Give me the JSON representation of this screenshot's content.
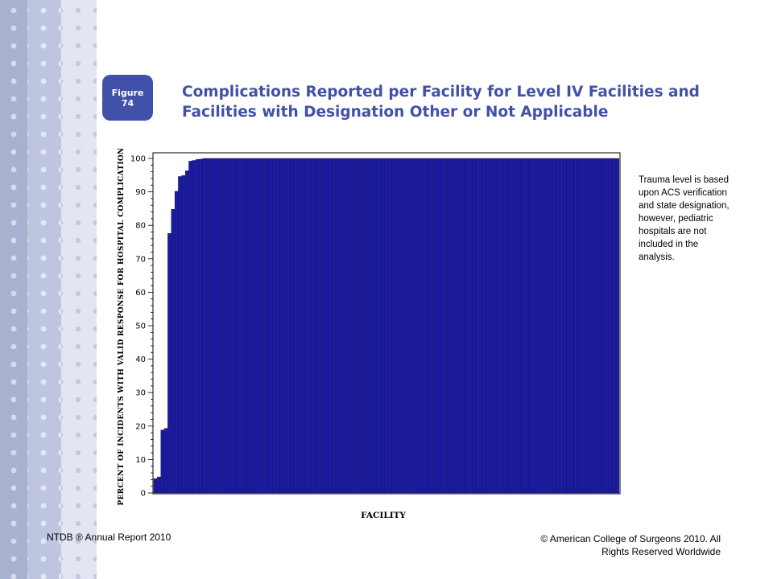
{
  "badge": {
    "line1": "Figure",
    "line2": "74"
  },
  "title": {
    "line1": "Complications Reported per Facility for Level IV Facilities and",
    "line2": "Facilities with Designation Other or Not Applicable"
  },
  "note": "Trauma level is based upon ACS verification and state designation, however, pediatric hospitals are not included in the analysis.",
  "footer": {
    "left": "NTDB ® Annual Report 2010",
    "right_line1": "© American College of Surgeons 2010.  All",
    "right_line2": "Rights Reserved Worldwide"
  },
  "colors": {
    "bar_fill": "#1a1aa6",
    "bar_edge": "#000033",
    "title": "#4150a8",
    "badge": "#4150a8"
  },
  "chart_data": {
    "type": "bar",
    "title": "",
    "xlabel": "FACILITY",
    "ylabel": "PERCENT OF INCIDENTS WITH VALID RESPONSE FOR HOSPITAL COMPLICATION",
    "ylim": [
      0,
      100
    ],
    "yticks": [
      0,
      10,
      20,
      30,
      40,
      50,
      60,
      70,
      80,
      90,
      100
    ],
    "grid": false,
    "values": [
      4.3,
      4.8,
      18.8,
      19.3,
      77.6,
      84.8,
      90.2,
      94.6,
      94.9,
      96.3,
      99.2,
      99.4,
      99.7,
      99.8,
      100,
      100,
      100,
      100,
      100,
      100,
      100,
      100,
      100,
      100,
      100,
      100,
      100,
      100,
      100,
      100,
      100,
      100,
      100,
      100,
      100,
      100,
      100,
      100,
      100,
      100,
      100,
      100,
      100,
      100,
      100,
      100,
      100,
      100,
      100,
      100,
      100,
      100,
      100,
      100,
      100,
      100,
      100,
      100,
      100,
      100,
      100,
      100,
      100,
      100,
      100,
      100,
      100,
      100,
      100,
      100,
      100,
      100,
      100,
      100,
      100,
      100,
      100,
      100,
      100,
      100,
      100,
      100,
      100,
      100,
      100,
      100,
      100,
      100,
      100,
      100,
      100,
      100,
      100,
      100,
      100,
      100,
      100,
      100,
      100,
      100,
      100,
      100,
      100,
      100,
      100,
      100,
      100,
      100,
      100,
      100,
      100,
      100,
      100,
      100,
      100,
      100,
      100,
      100,
      100,
      100,
      100,
      100,
      100,
      100,
      100,
      100,
      100,
      100,
      100,
      100,
      100,
      100,
      100
    ]
  }
}
